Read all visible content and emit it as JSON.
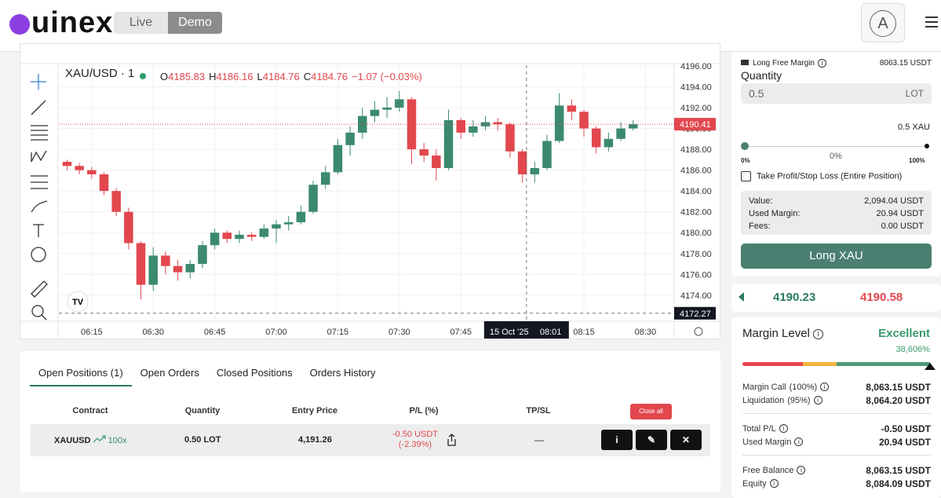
{
  "header": {
    "logo": "uinex",
    "tabs": [
      "Live",
      "Demo"
    ],
    "avatar": "A"
  },
  "chart": {
    "type": "candlestick",
    "symbol": "XAU/USD · 1",
    "ohlc": [
      {
        "key": "O",
        "value": "4185.83"
      },
      {
        "key": "H",
        "value": "4186.16"
      },
      {
        "key": "L",
        "value": "4184.76"
      },
      {
        "key": "C",
        "value": "4184.76"
      }
    ],
    "change": "−1.07 (−0.03%)",
    "ylim": [
      4171.5,
      4196.07
    ],
    "yticks": [
      {
        "value": 4196,
        "label": "4196.00"
      },
      {
        "value": 4194,
        "label": "4194.00"
      },
      {
        "value": 4192,
        "label": "4192.00"
      },
      {
        "value": 4190,
        "label": "4190.00"
      },
      {
        "value": 4188,
        "label": "4188.00"
      },
      {
        "value": 4186,
        "label": "4186.00"
      },
      {
        "value": 4184,
        "label": "4184.00"
      },
      {
        "value": 4182,
        "label": "4182.00"
      },
      {
        "value": 4180,
        "label": "4180.00"
      },
      {
        "value": 4178,
        "label": "4178.00"
      },
      {
        "value": 4176,
        "label": "4176.00"
      },
      {
        "value": 4174,
        "label": "4174.00"
      }
    ],
    "xlim": [
      "06:07",
      "08:37"
    ],
    "xticks": [
      "06:15",
      "06:30",
      "06:45",
      "07:00",
      "07:15",
      "07:30",
      "07:45",
      "08:15",
      "08:30"
    ],
    "crosshair": {
      "date": "15 Oct '25",
      "time": "08:01",
      "price": {
        "value": 4172.27,
        "label": "4172.27"
      }
    },
    "last_price": {
      "value": 4190.41,
      "label": "4190.41"
    },
    "colors": {
      "up": "#3b8a6e",
      "down": "#e2474e"
    },
    "candles": {
      "x": [
        "06:09",
        "06:12",
        "06:15",
        "06:18",
        "06:21",
        "06:24",
        "06:27",
        "06:30",
        "06:33",
        "06:36",
        "06:39",
        "06:42",
        "06:45",
        "06:48",
        "06:51",
        "06:54",
        "06:57",
        "07:00",
        "07:03",
        "07:06",
        "07:09",
        "07:12",
        "07:15",
        "07:18",
        "07:21",
        "07:24",
        "07:27",
        "07:30",
        "07:33",
        "07:36",
        "07:39",
        "07:42",
        "07:45",
        "07:48",
        "07:51",
        "07:54",
        "07:57",
        "08:00",
        "08:03",
        "08:06",
        "08:09",
        "08:12",
        "08:15",
        "08:18",
        "08:21",
        "08:24",
        "08:27"
      ],
      "open": [
        4186.8,
        4186.4,
        4186.0,
        4185.6,
        4184.0,
        4182.0,
        4179.0,
        4175.0,
        4177.8,
        4176.8,
        4176.2,
        4177.0,
        4178.8,
        4180.0,
        4179.4,
        4179.8,
        4179.6,
        4180.4,
        4180.8,
        4181.0,
        4182.0,
        4184.6,
        4185.8,
        4188.4,
        4189.6,
        4191.2,
        4191.8,
        4192.0,
        4192.8,
        4188.0,
        4187.4,
        4186.2,
        4190.8,
        4189.6,
        4190.2,
        4190.6,
        4190.4,
        4187.8,
        4185.6,
        4186.2,
        4188.8,
        4192.2,
        4191.6,
        4190.0,
        4188.2,
        4189.0,
        4190.0
      ],
      "high": [
        4187.0,
        4186.7,
        4186.3,
        4185.8,
        4184.3,
        4182.4,
        4179.2,
        4178.6,
        4178.2,
        4177.4,
        4177.4,
        4179.2,
        4180.4,
        4180.2,
        4180.2,
        4180.0,
        4180.8,
        4181.2,
        4181.6,
        4182.6,
        4185.0,
        4186.4,
        4189.0,
        4190.2,
        4192.0,
        4192.6,
        4193.0,
        4193.6,
        4193.0,
        4188.6,
        4188.0,
        4191.8,
        4191.0,
        4190.8,
        4191.2,
        4191.0,
        4190.6,
        4188.0,
        4186.8,
        4189.4,
        4193.4,
        4192.8,
        4191.8,
        4190.2,
        4189.6,
        4190.6,
        4190.8
      ],
      "low": [
        4186.0,
        4185.6,
        4185.2,
        4183.6,
        4181.6,
        4178.4,
        4173.6,
        4174.4,
        4176.0,
        4175.4,
        4175.6,
        4176.6,
        4178.4,
        4179.0,
        4179.0,
        4179.2,
        4179.4,
        4179.0,
        4180.2,
        4180.8,
        4181.8,
        4184.2,
        4185.6,
        4187.4,
        4189.0,
        4190.6,
        4191.0,
        4191.6,
        4186.6,
        4186.8,
        4185.0,
        4186.0,
        4189.0,
        4189.2,
        4189.8,
        4189.8,
        4187.2,
        4184.8,
        4184.8,
        4186.0,
        4188.6,
        4190.8,
        4189.2,
        4187.6,
        4187.8,
        4188.8,
        4189.8
      ],
      "close": [
        4186.4,
        4186.0,
        4185.6,
        4184.0,
        4182.0,
        4179.0,
        4175.0,
        4177.8,
        4176.8,
        4176.2,
        4177.0,
        4178.8,
        4180.0,
        4179.4,
        4179.8,
        4179.6,
        4180.4,
        4180.8,
        4181.0,
        4182.0,
        4184.6,
        4185.8,
        4188.4,
        4189.6,
        4191.2,
        4191.8,
        4192.0,
        4192.8,
        4188.0,
        4187.4,
        4186.2,
        4190.8,
        4189.6,
        4190.2,
        4190.6,
        4190.4,
        4187.8,
        4185.6,
        4186.2,
        4188.8,
        4192.2,
        4191.6,
        4190.0,
        4188.2,
        4189.0,
        4190.0,
        4190.41
      ]
    }
  },
  "order_form": {
    "free_margin_label": "Long Free Margin",
    "free_margin": "8063.15 USDT",
    "quantity_label": "Quantity",
    "quantity": "0.5",
    "unit": "LOT",
    "converted": "0.5 XAU",
    "slider_min": "0%",
    "slider_value": "0%",
    "slider_max": "100%",
    "tpsl": "Take Profit/Stop Loss (Entire Position)",
    "summary": [
      {
        "label": "Value:",
        "value": "2,094.04 USDT"
      },
      {
        "label": "Used Margin:",
        "value": "20.94 USDT"
      },
      {
        "label": "Fees:",
        "value": "0.00 USDT"
      }
    ],
    "button": "Long XAU"
  },
  "quote": {
    "bid": "4190.23",
    "ask": "4190.58"
  },
  "margin": {
    "title": "Margin Level",
    "status": "Excellent",
    "level": "38,606%",
    "rows": [
      [
        {
          "label": "Margin Call",
          "note": "(100%)",
          "value": "8,063.15 USDT"
        },
        {
          "label": "Liquidation",
          "note": "(95%)",
          "value": "8,064.20 USDT"
        }
      ],
      [
        {
          "label": "Total P/L",
          "note": "",
          "value": "-0.50 USDT"
        },
        {
          "label": "Used Margin",
          "note": "",
          "value": "20.94 USDT"
        }
      ],
      [
        {
          "label": "Free Balance",
          "note": "",
          "value": "8,063.15 USDT"
        },
        {
          "label": "Equity",
          "note": "",
          "value": "8,084.09 USDT"
        }
      ]
    ]
  },
  "positions": {
    "tabs": [
      "Open Positions (1)",
      "Open Orders",
      "Closed Positions",
      "Orders History"
    ],
    "columns": [
      "Contract",
      "Quantity",
      "Entry Price",
      "P/L (%)",
      "TP/SL"
    ],
    "close_all": "Close all",
    "rows": [
      {
        "contract": "XAUUSD",
        "leverage": "100x",
        "quantity": "0.50 LOT",
        "entry": "4,191.26",
        "pl": "-0.50 USDT",
        "pl_pct": "(-2.39%)",
        "tpsl": "—"
      }
    ]
  }
}
